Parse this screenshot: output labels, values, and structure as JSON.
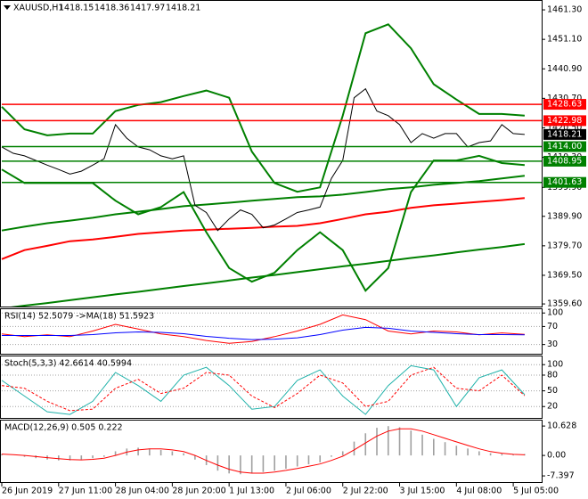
{
  "chart_data": [
    {
      "type": "line",
      "title": "XAUUSD,H1",
      "ohlc": [
        1418.15,
        1418.36,
        1417.97,
        1418.21
      ],
      "xlim": [
        0,
        95
      ],
      "xticks": [
        {
          "value": 0,
          "label": "26 Jun 2019"
        },
        {
          "value": 10,
          "label": "27 Jun 11:00"
        },
        {
          "value": 20,
          "label": "28 Jun 04:00"
        },
        {
          "value": 30,
          "label": "28 Jun 20:00"
        },
        {
          "value": 40,
          "label": "1 Jul 13:00"
        },
        {
          "value": 50,
          "label": "2 Jul 06:00"
        },
        {
          "value": 60,
          "label": "2 Jul 22:00"
        },
        {
          "value": 70,
          "label": "3 Jul 15:00"
        },
        {
          "value": 80,
          "label": "4 Jul 08:00"
        },
        {
          "value": 90,
          "label": "5 Jul 05:00"
        }
      ],
      "ylim": [
        1358.7,
        1464.4
      ],
      "yticks": [
        {
          "value": 1461.3,
          "label": "1461.30"
        },
        {
          "value": 1451.1,
          "label": "1451.10"
        },
        {
          "value": 1440.9,
          "label": "1440.90"
        },
        {
          "value": 1430.7,
          "label": "1430.70"
        },
        {
          "value": 1420.5,
          "label": "1420.50"
        },
        {
          "value": 1410.3,
          "label": "1410.30"
        },
        {
          "value": 1399.9,
          "label": "1399.90"
        },
        {
          "value": 1389.9,
          "label": "1389.90"
        },
        {
          "value": 1379.7,
          "label": "1379.70"
        },
        {
          "value": 1369.5,
          "label": "1369.50"
        },
        {
          "value": 1359.6,
          "label": "1359.60"
        }
      ],
      "grid": false,
      "levels": [
        {
          "value": 1428.63,
          "color": "#ff0000"
        },
        {
          "value": 1422.98,
          "color": "#ff0000"
        },
        {
          "value": {
            "value": 1414,
            "label": "1414.00"
          },
          "color": "#008000"
        },
        {
          "value": 1408.95,
          "color": "#008000"
        },
        {
          "value": 1401.63,
          "color": "#008000"
        }
      ],
      "series": [
        {
          "color": "#008000",
          "width": 2,
          "x": [
            0,
            4,
            8,
            12,
            16,
            20,
            24,
            28,
            32,
            36,
            40,
            44,
            48,
            52,
            56,
            60,
            64,
            68,
            72,
            76,
            80,
            84,
            88,
            92
          ],
          "values": [
            1358.0,
            1359.0,
            1359.9,
            1360.9,
            1361.9,
            1362.9,
            1363.8,
            1364.8,
            1365.8,
            1366.7,
            1367.7,
            1368.7,
            1369.6,
            1370.6,
            1371.6,
            1372.6,
            1373.5,
            1374.5,
            1375.5,
            1376.4,
            1377.4,
            1378.4,
            1379.3,
            1380.3
          ]
        },
        {
          "color": "#008000",
          "width": 2,
          "x": [
            0,
            4,
            8,
            12,
            16,
            20,
            24,
            28,
            32,
            36,
            40,
            44,
            48,
            52,
            56,
            60,
            64,
            68,
            72,
            76,
            80,
            84,
            88,
            92
          ],
          "values": [
            1385.0,
            1386.3,
            1387.5,
            1388.4,
            1389.4,
            1390.6,
            1391.5,
            1392.4,
            1393.4,
            1394.0,
            1394.6,
            1395.3,
            1395.9,
            1396.5,
            1396.8,
            1397.4,
            1398.3,
            1399.3,
            1399.9,
            1400.8,
            1401.4,
            1402.1,
            1403.0,
            1403.9
          ]
        },
        {
          "color": "#ff0000",
          "width": 2,
          "x": [
            0,
            4,
            8,
            12,
            16,
            20,
            24,
            28,
            32,
            36,
            40,
            44,
            48,
            52,
            56,
            60,
            64,
            68,
            72,
            76,
            80,
            84,
            88,
            92
          ],
          "values": [
            1375.1,
            1378.2,
            1379.7,
            1381.3,
            1381.9,
            1382.8,
            1383.8,
            1384.4,
            1385.0,
            1385.3,
            1385.6,
            1385.9,
            1386.3,
            1386.6,
            1387.5,
            1389.0,
            1390.6,
            1391.5,
            1392.8,
            1393.7,
            1394.3,
            1394.9,
            1395.5,
            1396.2
          ]
        },
        {
          "color": "#008000",
          "width": 2,
          "x": [
            0,
            4,
            8,
            12,
            16,
            20,
            24,
            28,
            32,
            36,
            40,
            44,
            48,
            52,
            56,
            60,
            64,
            68,
            72,
            76,
            80,
            84,
            88,
            92
          ],
          "values": [
            1427.8,
            1420.0,
            1417.9,
            1418.5,
            1418.5,
            1426.3,
            1428.4,
            1429.4,
            1431.5,
            1433.4,
            1430.9,
            1412.3,
            1401.4,
            1398.4,
            1399.9,
            1424.7,
            1453.2,
            1456.3,
            1448.0,
            1435.6,
            1430.3,
            1425.3,
            1425.3,
            1424.7
          ]
        },
        {
          "color": "#008000",
          "width": 2,
          "x": [
            0,
            4,
            8,
            12,
            16,
            20,
            24,
            28,
            32,
            36,
            40,
            44,
            48,
            52,
            56,
            60,
            64,
            68,
            72,
            76,
            80,
            84,
            88,
            92
          ],
          "values": [
            1406.1,
            1401.4,
            1401.4,
            1401.4,
            1401.4,
            1395.3,
            1390.6,
            1393.1,
            1398.3,
            1384.4,
            1372.0,
            1367.3,
            1370.4,
            1378.2,
            1384.4,
            1378.2,
            1364.2,
            1372.0,
            1398.3,
            1409.2,
            1409.2,
            1410.8,
            1408.3,
            1407.6
          ]
        },
        {
          "color": "#000000",
          "width": 1,
          "x": [
            0,
            2,
            4,
            6,
            8,
            10,
            12,
            14,
            16,
            18,
            20,
            22,
            24,
            26,
            28,
            30,
            32,
            34,
            36,
            38,
            40,
            42,
            44,
            46,
            48,
            50,
            52,
            54,
            56,
            58,
            60,
            62,
            64,
            66,
            68,
            70,
            72,
            74,
            76,
            78,
            80,
            82,
            84,
            86,
            88,
            90,
            92
          ],
          "values": [
            1413.9,
            1411.7,
            1410.8,
            1409.2,
            1407.6,
            1406.1,
            1404.5,
            1405.5,
            1407.6,
            1409.8,
            1421.6,
            1416.9,
            1413.9,
            1412.9,
            1410.8,
            1409.8,
            1410.8,
            1393.7,
            1391.2,
            1385.0,
            1389.0,
            1392.1,
            1390.6,
            1385.9,
            1386.9,
            1389.0,
            1391.2,
            1392.1,
            1393.1,
            1403.0,
            1409.2,
            1430.9,
            1434.0,
            1426.3,
            1424.7,
            1421.6,
            1415.4,
            1418.5,
            1416.9,
            1418.5,
            1418.5,
            1413.9,
            1415.4,
            1416.0,
            1421.6,
            1418.5,
            1418.2
          ]
        }
      ]
    },
    {
      "type": "line",
      "title": "RSI(14) 52.5079 ->MA(18) 51.5923",
      "xlim": [
        0,
        95
      ],
      "ylim": [
        9.5,
        108.4
      ],
      "yticks": [
        100,
        70,
        30
      ],
      "grid": true,
      "series": [
        {
          "color": "#ff0000",
          "width": 1,
          "x": [
            0,
            4,
            8,
            12,
            16,
            20,
            24,
            28,
            32,
            36,
            40,
            44,
            48,
            52,
            56,
            60,
            64,
            68,
            72,
            76,
            80,
            84,
            88,
            92
          ],
          "values": [
            53.7,
            47.4,
            51.6,
            47.4,
            60.0,
            74.7,
            64.2,
            53.7,
            47.4,
            38.9,
            32.6,
            36.8,
            47.4,
            60.0,
            74.7,
            95.8,
            85.3,
            60.0,
            53.7,
            60.0,
            57.9,
            51.6,
            55.8,
            52.5
          ]
        },
        {
          "color": "#0000ff",
          "width": 1,
          "x": [
            0,
            4,
            8,
            12,
            16,
            20,
            24,
            28,
            32,
            36,
            40,
            44,
            48,
            52,
            56,
            60,
            64,
            68,
            72,
            76,
            80,
            84,
            88,
            92
          ],
          "values": [
            50,
            50,
            50,
            50,
            52,
            56,
            58,
            57,
            54,
            48,
            44,
            41,
            42,
            45,
            52,
            62,
            68,
            66,
            60,
            57,
            54,
            52,
            52,
            51.6
          ]
        }
      ]
    },
    {
      "type": "line",
      "title": "Stoch(5,3,3) 42.6614 40.5994",
      "xlim": [
        0,
        95
      ],
      "ylim": [
        -1.7,
        115.7
      ],
      "yticks": [
        100,
        80,
        50,
        20
      ],
      "grid": true,
      "series": [
        {
          "color": "#20b2aa",
          "width": 1,
          "x": [
            0,
            4,
            8,
            12,
            16,
            20,
            24,
            28,
            32,
            36,
            40,
            44,
            48,
            52,
            56,
            60,
            64,
            68,
            72,
            76,
            80,
            84,
            88,
            92
          ],
          "values": [
            70,
            40,
            10,
            5,
            30,
            85,
            60,
            30,
            80,
            95,
            60,
            15,
            20,
            70,
            90,
            40,
            5,
            60,
            98,
            90,
            20,
            75,
            90,
            42.7
          ]
        },
        {
          "color": "#ff0000",
          "width": 1,
          "dash": true,
          "x": [
            0,
            4,
            8,
            12,
            16,
            20,
            24,
            28,
            32,
            36,
            40,
            44,
            48,
            52,
            56,
            60,
            64,
            68,
            72,
            76,
            80,
            84,
            88,
            92
          ],
          "values": [
            60,
            55,
            30,
            12,
            15,
            55,
            72,
            45,
            55,
            85,
            80,
            40,
            18,
            45,
            80,
            65,
            20,
            30,
            80,
            95,
            55,
            50,
            80,
            40.6
          ]
        }
      ]
    },
    {
      "type": "bar",
      "title": "MACD(12,26,9) 0.505 0.222",
      "xlim": [
        0,
        95
      ],
      "ylim": [
        -9.63,
        12.6
      ],
      "yticks": [
        10.628,
        {
          "value": 0,
          "label": "0.00"
        },
        -7.397
      ],
      "grid": false,
      "color": "#a0a0a0",
      "x": [
        0,
        2,
        4,
        6,
        8,
        10,
        12,
        14,
        16,
        18,
        20,
        22,
        24,
        26,
        28,
        30,
        32,
        34,
        36,
        38,
        40,
        42,
        44,
        46,
        48,
        50,
        52,
        54,
        56,
        58,
        60,
        62,
        64,
        66,
        68,
        70,
        72,
        74,
        76,
        78,
        80,
        82,
        84,
        86,
        88,
        90,
        92
      ],
      "values": [
        0.5,
        0.0,
        -0.5,
        -1.0,
        -1.5,
        -1.8,
        -1.8,
        -1.5,
        -1.0,
        -0.5,
        1.5,
        2.5,
        2.8,
        2.5,
        2.0,
        1.5,
        0.8,
        -1.5,
        -3.5,
        -5.5,
        -6.5,
        -6.8,
        -6.5,
        -6.0,
        -5.5,
        -4.8,
        -4.0,
        -3.2,
        -2.5,
        -0.5,
        1.5,
        5.0,
        8.0,
        10.0,
        10.6,
        10.2,
        9.0,
        7.5,
        6.0,
        4.8,
        3.5,
        2.5,
        1.5,
        0.8,
        0.6,
        0.5,
        0.505
      ],
      "series": [
        {
          "color": "#ff0000",
          "width": 1,
          "x": [
            0,
            2,
            4,
            6,
            8,
            10,
            12,
            14,
            16,
            18,
            20,
            22,
            24,
            26,
            28,
            30,
            32,
            34,
            36,
            38,
            40,
            42,
            44,
            46,
            48,
            50,
            52,
            54,
            56,
            58,
            60,
            62,
            64,
            66,
            68,
            70,
            72,
            74,
            76,
            78,
            80,
            82,
            84,
            86,
            88,
            90,
            92
          ],
          "values": [
            0.5,
            0.3,
            0,
            -0.4,
            -0.8,
            -1.2,
            -1.5,
            -1.6,
            -1.4,
            -1.0,
            0,
            1.2,
            2.0,
            2.4,
            2.4,
            2.0,
            1.4,
            0,
            -1.8,
            -3.5,
            -5.0,
            -6.0,
            -6.4,
            -6.4,
            -6.0,
            -5.4,
            -4.7,
            -3.9,
            -3.1,
            -1.8,
            -0.3,
            2.0,
            4.5,
            7.0,
            8.8,
            9.6,
            9.6,
            8.8,
            7.5,
            6.2,
            4.9,
            3.6,
            2.4,
            1.4,
            0.8,
            0.4,
            0.222
          ]
        }
      ]
    }
  ]
}
